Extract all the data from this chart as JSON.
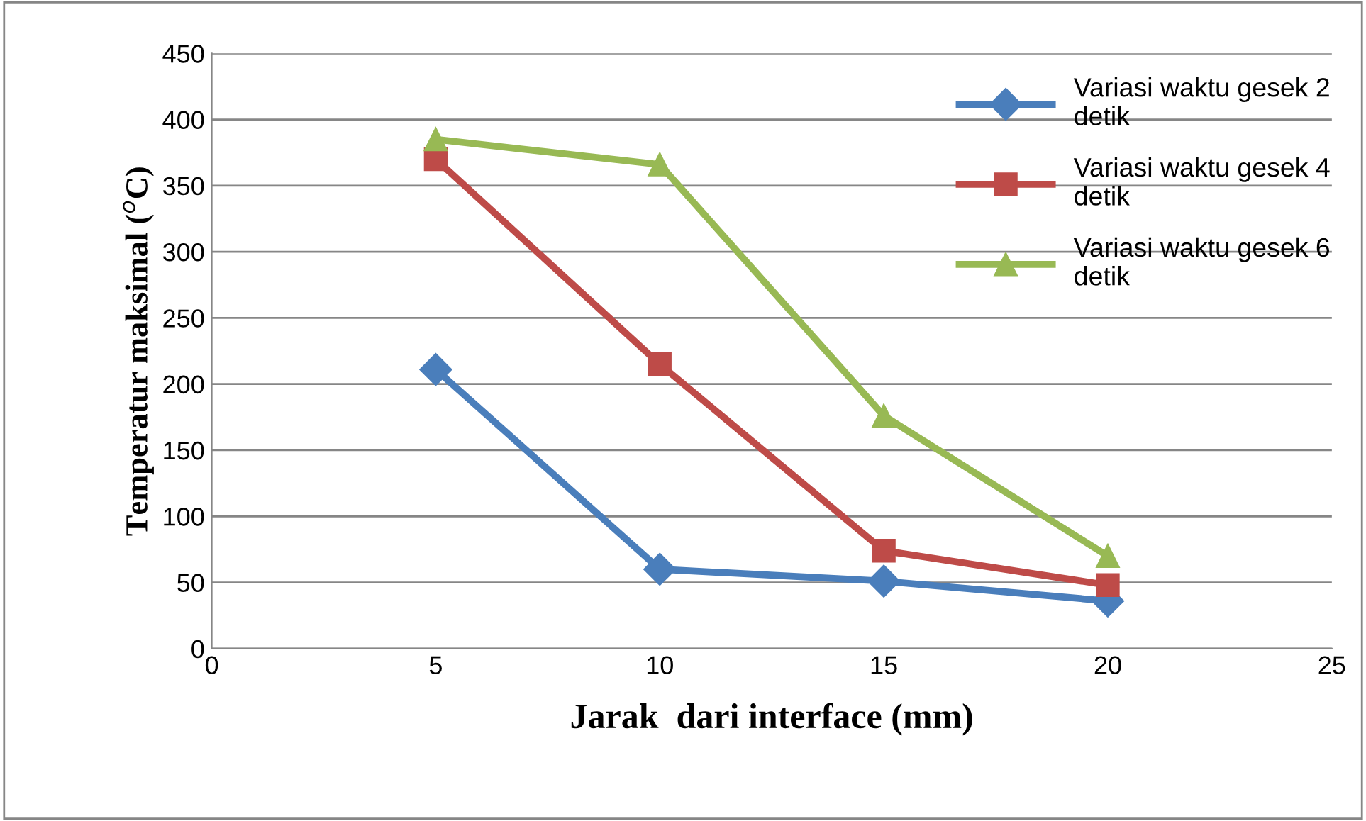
{
  "chart_data": {
    "type": "line",
    "xlabel": "Jarak  dari interface (mm)",
    "ylabel": "Temperatur maksimal ($^{o}$C)",
    "x": [
      5,
      10,
      15,
      20
    ],
    "series": [
      {
        "name": "Variasi waktu gesek 2 detik",
        "color": "#4a7ebb",
        "marker": "diamond",
        "values": [
          211,
          60,
          51,
          36
        ]
      },
      {
        "name": "Variasi waktu gesek 4 detik",
        "color": "#be4b48",
        "marker": "square",
        "values": [
          370,
          215,
          74,
          48
        ]
      },
      {
        "name": "Variasi waktu gesek 6 detik",
        "color": "#98b954",
        "marker": "triangle",
        "values": [
          385,
          366,
          176,
          70
        ]
      }
    ],
    "xlim": [
      0,
      25
    ],
    "xticks": [
      0,
      5,
      10,
      15,
      20,
      25
    ],
    "ylim": [
      0,
      450
    ],
    "yticks": [
      0,
      50,
      100,
      150,
      200,
      250,
      300,
      350,
      400,
      450
    ],
    "grid": "y",
    "legend": "top right",
    "line_style": "solid"
  }
}
